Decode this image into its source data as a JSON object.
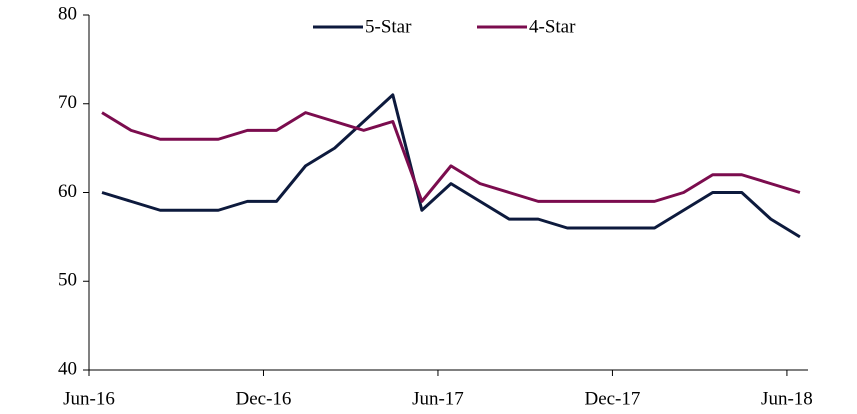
{
  "chart_data": {
    "type": "line",
    "categories": [
      "Jun-16",
      null,
      null,
      null,
      null,
      null,
      "Dec-16",
      null,
      null,
      null,
      null,
      null,
      "Jun-17",
      null,
      null,
      null,
      null,
      null,
      "Dec-17",
      null,
      null,
      null,
      null,
      null,
      "Jun-18"
    ],
    "series": [
      {
        "name": "5-Star",
        "color": "#0d1a3d",
        "values": [
          60,
          59,
          58,
          58,
          58,
          59,
          59,
          63,
          65,
          68,
          71,
          58,
          61,
          59,
          57,
          57,
          56,
          56,
          56,
          56,
          58,
          60,
          60,
          57,
          55
        ]
      },
      {
        "name": "4-Star",
        "color": "#7b0c4e",
        "values": [
          69,
          67,
          66,
          66,
          66,
          67,
          67,
          69,
          68,
          67,
          68,
          59,
          63,
          61,
          60,
          59,
          59,
          59,
          59,
          59,
          60,
          62,
          62,
          61,
          60
        ]
      }
    ],
    "ylim": [
      40,
      80
    ],
    "yticks": [
      40,
      50,
      60,
      70,
      80
    ],
    "grid": false,
    "legend": "top"
  }
}
